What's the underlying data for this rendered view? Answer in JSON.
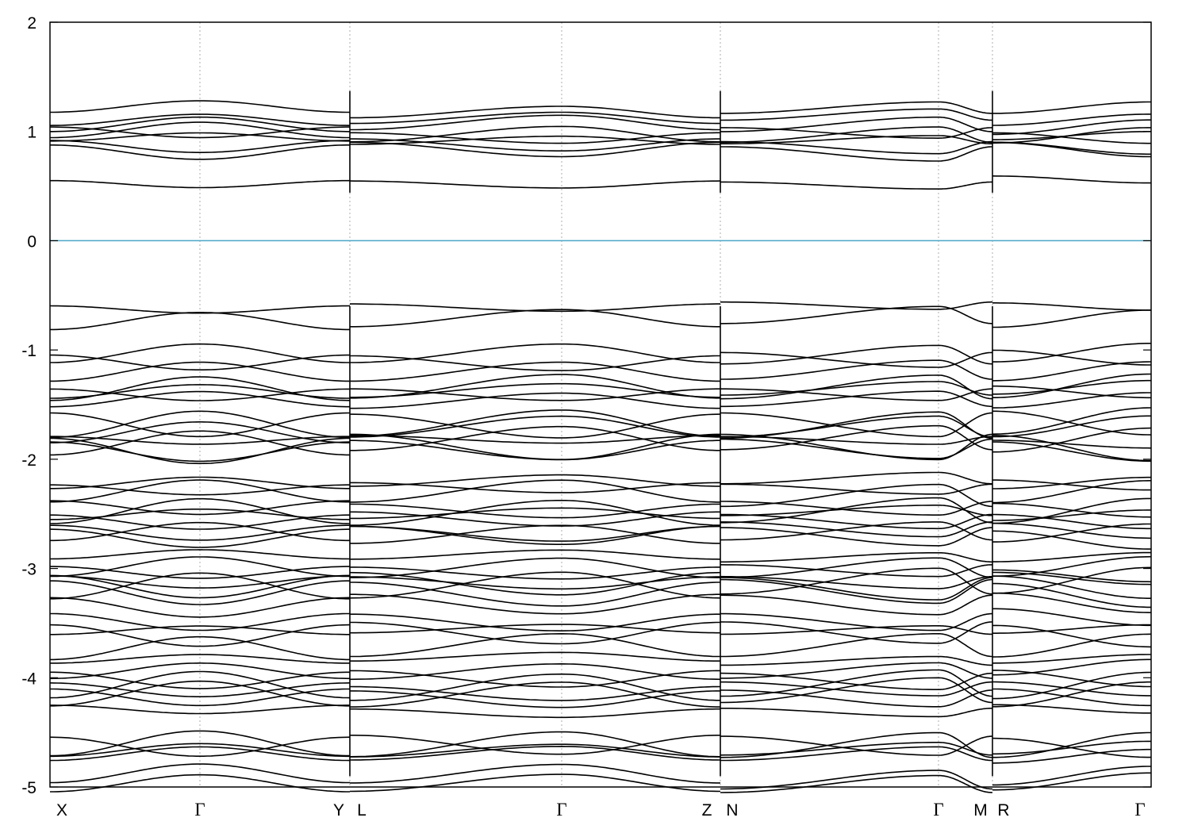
{
  "chart_data": {
    "type": "line",
    "title": "",
    "xlabel": "",
    "ylabel": "",
    "ylim": [
      -5,
      2
    ],
    "yticks": [
      2,
      1,
      0,
      -1,
      -2,
      -3,
      -4,
      -5
    ],
    "grid": "dashed vertical lines at high-symmetry points",
    "zero_line": {
      "y": 0,
      "color": "#4da6c8"
    },
    "segments": [
      {
        "path": [
          "X",
          "Γ",
          "Y"
        ]
      },
      {
        "path": [
          "L",
          "Γ",
          "Z"
        ]
      },
      {
        "path": [
          "N",
          "Γ",
          "M"
        ]
      },
      {
        "path": [
          "R",
          "Γ"
        ]
      }
    ],
    "bands": {
      "conduction": [
        0.5,
        0.75,
        0.82,
        0.92,
        0.98,
        1.06,
        1.12,
        1.18,
        1.26
      ],
      "valence": [
        -0.63,
        -0.65,
        -0.96,
        -1.12,
        -1.16,
        -1.22,
        -1.3,
        -1.38,
        -1.46,
        -1.54,
        -1.63,
        -1.72,
        -1.8,
        -1.88,
        -2.0,
        -2.02,
        -2.14,
        -2.22,
        -2.3,
        -2.38,
        -2.45,
        -2.52,
        -2.6,
        -2.64,
        -2.72,
        -2.8,
        -2.84,
        -2.92,
        -3.02,
        -3.1,
        -3.17,
        -3.26,
        -3.34,
        -3.42,
        -3.5,
        -3.55,
        -3.62,
        -3.7,
        -3.78,
        -3.86,
        -3.95,
        -4.02,
        -4.1,
        -4.18,
        -4.26,
        -4.35,
        -4.5,
        -4.58,
        -4.64,
        -4.72,
        -4.82,
        -4.88
      ]
    },
    "line_color": "#000000"
  }
}
